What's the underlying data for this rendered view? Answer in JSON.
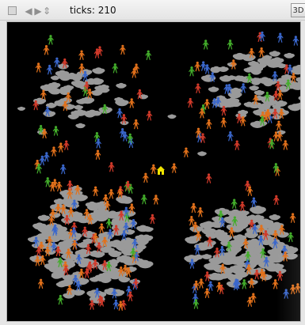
{
  "toolbar": {
    "ticks_label": "ticks:",
    "ticks_value": "210",
    "view_3d_label": "3D"
  },
  "icons": {
    "resize": "resize-icon",
    "left": "arrow-left-icon",
    "right": "arrow-right-icon",
    "updown": "up-down-icon",
    "house": "house-icon",
    "person": "person-icon",
    "cloud": "cloud-icon"
  },
  "colors": {
    "world_background": "#000000",
    "cloud_gray": "#9a9a9a",
    "person_orange": "#e2711b",
    "person_red": "#d23a2a",
    "person_green": "#43ad2b",
    "person_blue": "#3a67cc",
    "house_yellow": "#f0e400"
  }
}
